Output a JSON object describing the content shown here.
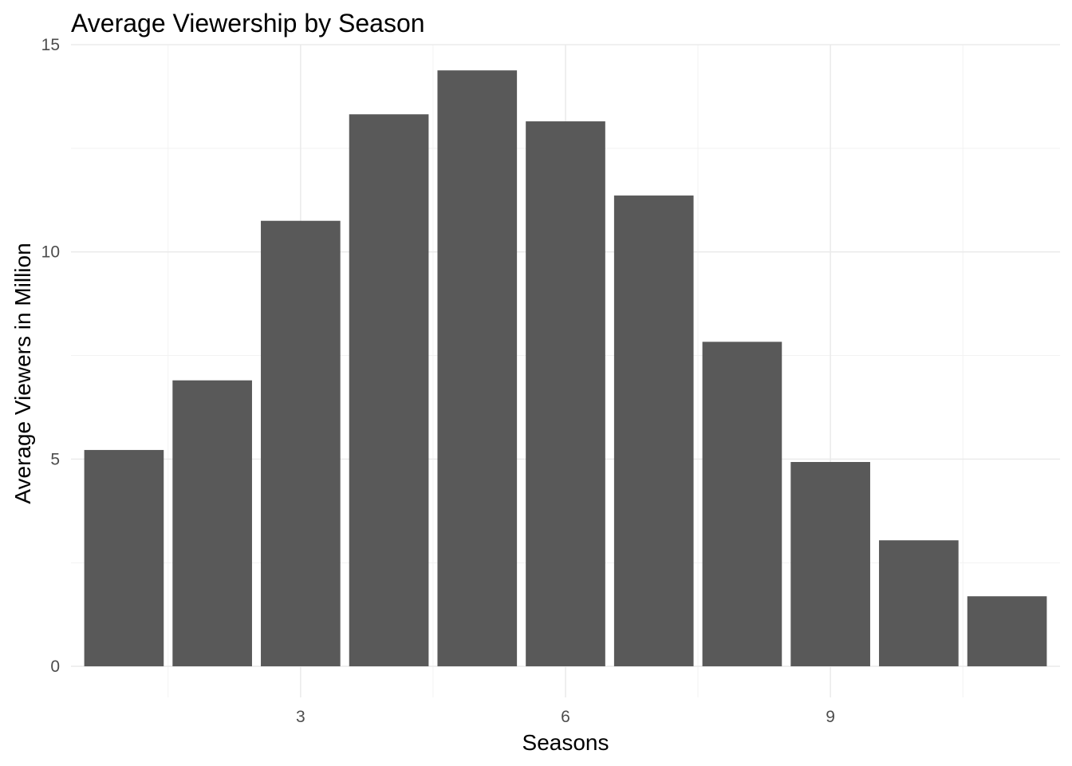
{
  "chart_data": {
    "type": "bar",
    "title": "Average Viewership by Season",
    "xlabel": "Seasons",
    "ylabel": "Average Viewers in Million",
    "x": [
      1,
      2,
      3,
      4,
      5,
      6,
      7,
      8,
      9,
      10,
      11
    ],
    "values": [
      5.22,
      6.9,
      10.75,
      13.32,
      14.38,
      13.15,
      11.36,
      7.83,
      4.93,
      3.04,
      1.69
    ],
    "xlim": [
      0.4,
      11.6
    ],
    "ylim": [
      -0.75,
      15
    ],
    "x_ticks": [
      3,
      6,
      9
    ],
    "y_ticks": [
      0,
      5,
      10,
      15
    ],
    "grid": true,
    "legend": "none",
    "bar_color": "#595959",
    "grid_color": "#ebebeb",
    "background_color": "#ffffff"
  }
}
